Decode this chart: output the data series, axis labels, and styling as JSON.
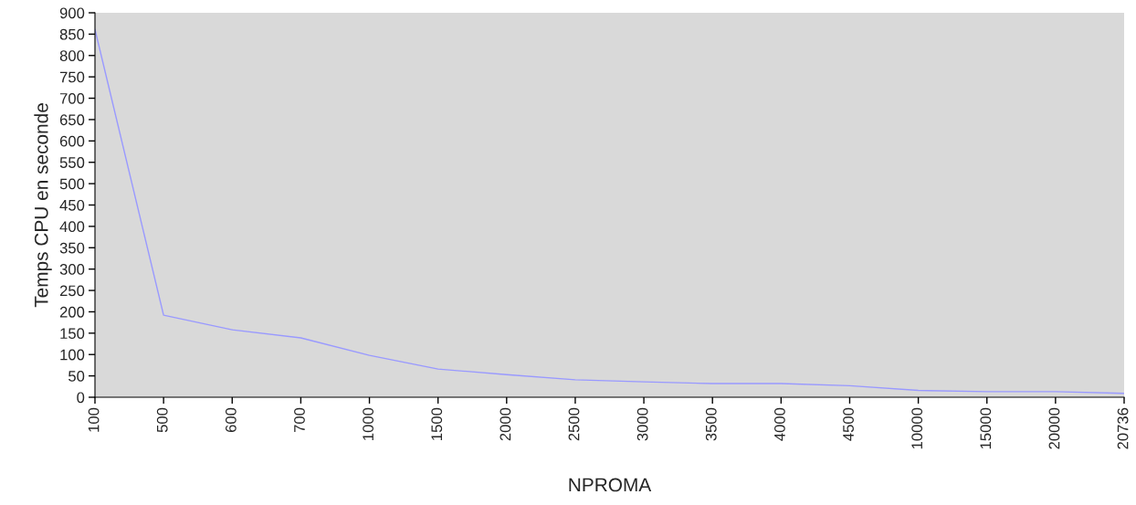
{
  "chart_data": {
    "type": "line",
    "xlabel": "NPROMA",
    "ylabel": "Temps CPU en seconde",
    "categories": [
      "100",
      "500",
      "600",
      "700",
      "1000",
      "1500",
      "2000",
      "2500",
      "3000",
      "3500",
      "4000",
      "4500",
      "10000",
      "15000",
      "20000",
      "20736"
    ],
    "series": [
      {
        "color": "#9999ff",
        "values": [
          861,
          192,
          158,
          139,
          98,
          66,
          53,
          41,
          36,
          32,
          32,
          27,
          16,
          13,
          13,
          9
        ]
      }
    ],
    "ylim": [
      0,
      900
    ],
    "yticks": [
      0,
      50,
      100,
      150,
      200,
      250,
      300,
      350,
      400,
      450,
      500,
      550,
      600,
      650,
      700,
      750,
      800,
      850,
      900
    ],
    "grid": false,
    "legend": false,
    "marker": "none",
    "line_style": "solid"
  }
}
